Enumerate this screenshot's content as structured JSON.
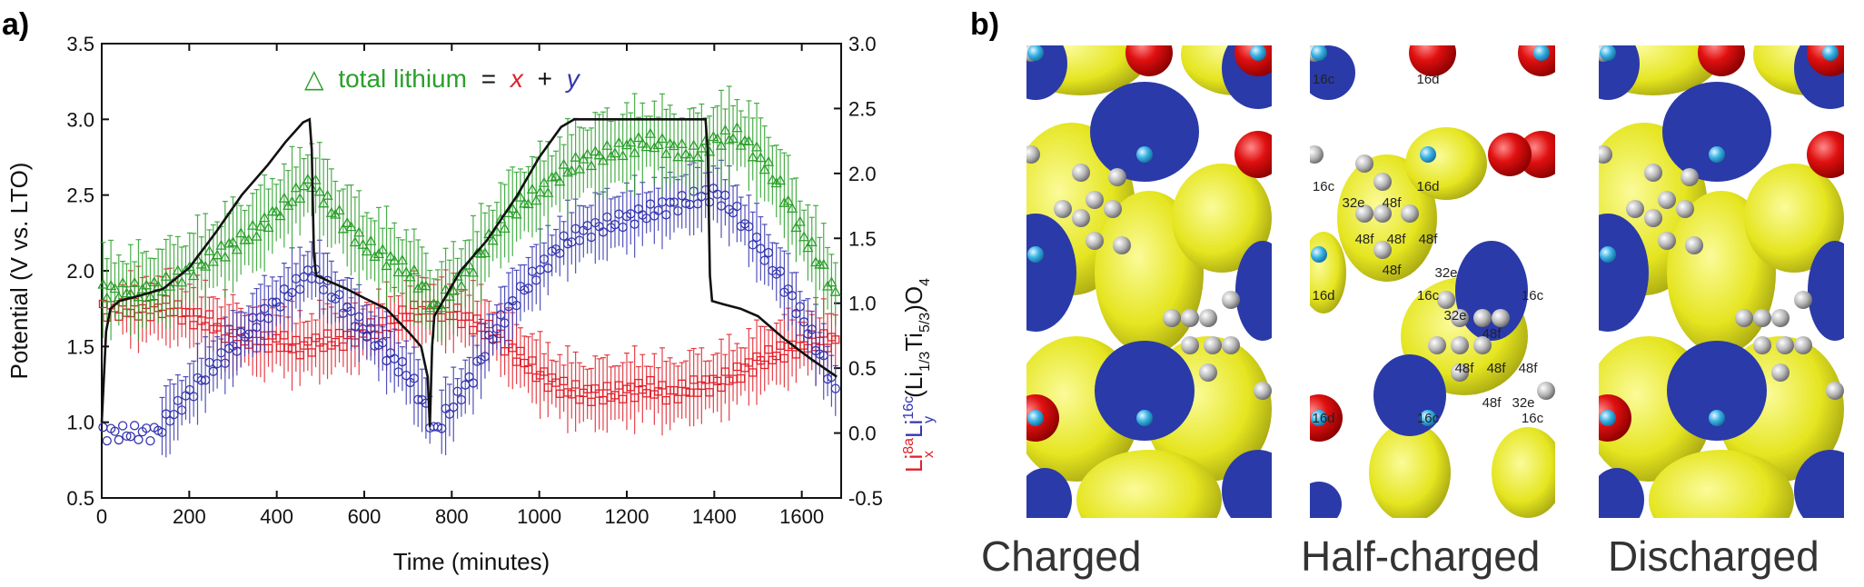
{
  "figure": {
    "panel_a_label": "a)",
    "panel_b_label": "b)"
  },
  "colors": {
    "potential": "#111111",
    "x_red": "#e0202a",
    "y_blue": "#3535b0",
    "total_green": "#2aa02a",
    "yellow": "#e8e820",
    "blue_density": "#2a3aa8",
    "oxygen": "#dd1111",
    "titanium": "#3bb3e6",
    "lithium": "#b5b5b5"
  },
  "chart_data": {
    "type": "line",
    "legend": {
      "symbol": "△",
      "text": "total lithium",
      "equals": "=",
      "x_symbol": "x",
      "plus": "+",
      "y_symbol": "y",
      "placement": "top-left"
    },
    "xlabel": "Time (minutes)",
    "ylabel_left": "Potential (V vs. LTO)",
    "ylabel_right": {
      "li": "Li",
      "sup_8a": "8a",
      "sub_x": "x",
      "sup_16c": "16c",
      "sub_y": "y",
      "formula": "(Li",
      "sub_13": "1/3",
      "ti": "Ti",
      "sub_53": "5/3",
      "o": ")O",
      "sub_4": "4"
    },
    "xlim": [
      0,
      1690
    ],
    "ylim_left": [
      0.5,
      3.5
    ],
    "ylim_right": [
      -0.5,
      3.0
    ],
    "xticks": [
      "0",
      "200",
      "400",
      "600",
      "800",
      "1000",
      "1200",
      "1400",
      "1600"
    ],
    "yticks_left": [
      "0.5",
      "1.0",
      "1.5",
      "2.0",
      "2.5",
      "3.0",
      "3.5"
    ],
    "yticks_right": [
      "-0.5",
      "0.0",
      "0.5",
      "1.0",
      "1.5",
      "2.0",
      "2.5",
      "3.0"
    ],
    "series": [
      {
        "axis": "left",
        "style": "line",
        "x": [
          0,
          5,
          10,
          20,
          40,
          80,
          140,
          200,
          260,
          320,
          380,
          420,
          460,
          475,
          480,
          485,
          490,
          520,
          560,
          600,
          650,
          700,
          730,
          745,
          750,
          755,
          760,
          780,
          820,
          880,
          950,
          1000,
          1050,
          1080,
          1100,
          1200,
          1300,
          1380,
          1385,
          1390,
          1395,
          1420,
          1460,
          1500,
          1560,
          1620,
          1680
        ],
        "values": [
          1.0,
          1.3,
          1.6,
          1.75,
          1.8,
          1.83,
          1.88,
          2.02,
          2.25,
          2.5,
          2.7,
          2.85,
          2.98,
          3.0,
          2.8,
          2.1,
          1.97,
          1.93,
          1.88,
          1.82,
          1.75,
          1.6,
          1.5,
          1.3,
          0.97,
          1.5,
          1.7,
          1.8,
          2.0,
          2.2,
          2.5,
          2.75,
          2.95,
          3.0,
          3.0,
          3.0,
          3.0,
          3.0,
          2.8,
          1.97,
          1.8,
          1.78,
          1.75,
          1.7,
          1.55,
          1.42,
          1.3
        ]
      },
      {
        "name": "x",
        "axis": "right",
        "style": "squares",
        "x": [
          0,
          50,
          100,
          150,
          200,
          250,
          300,
          350,
          400,
          450,
          500,
          550,
          600,
          650,
          700,
          750,
          800,
          850,
          900,
          950,
          1000,
          1050,
          1100,
          1150,
          1200,
          1250,
          1300,
          1350,
          1400,
          1450,
          1500,
          1550,
          1600,
          1650,
          1680
        ],
        "values": [
          0.95,
          0.95,
          0.95,
          0.97,
          0.9,
          0.85,
          0.75,
          0.7,
          0.72,
          0.65,
          0.7,
          0.72,
          0.78,
          0.82,
          0.92,
          0.95,
          0.93,
          0.85,
          0.75,
          0.6,
          0.45,
          0.35,
          0.3,
          0.3,
          0.32,
          0.35,
          0.3,
          0.35,
          0.38,
          0.45,
          0.55,
          0.62,
          0.68,
          0.72,
          0.7
        ]
      },
      {
        "name": "y",
        "axis": "right",
        "style": "circles",
        "x": [
          0,
          50,
          100,
          125,
          150,
          200,
          250,
          300,
          350,
          400,
          450,
          480,
          520,
          560,
          600,
          650,
          700,
          740,
          760,
          800,
          850,
          900,
          950,
          1000,
          1050,
          1100,
          1150,
          1200,
          1250,
          1300,
          1350,
          1400,
          1450,
          1500,
          1550,
          1600,
          1650,
          1680
        ],
        "values": [
          0.0,
          0.0,
          0.0,
          0.0,
          0.1,
          0.3,
          0.5,
          0.65,
          0.85,
          1.0,
          1.15,
          1.25,
          1.1,
          0.95,
          0.8,
          0.62,
          0.45,
          0.2,
          0.0,
          0.2,
          0.45,
          0.8,
          1.05,
          1.25,
          1.45,
          1.55,
          1.6,
          1.65,
          1.7,
          1.75,
          1.8,
          1.85,
          1.7,
          1.45,
          1.2,
          0.9,
          0.55,
          0.3
        ]
      },
      {
        "name": "total lithium",
        "axis": "right",
        "style": "triangles",
        "x": [
          0,
          50,
          100,
          150,
          200,
          250,
          300,
          350,
          400,
          450,
          480,
          520,
          560,
          600,
          650,
          700,
          740,
          760,
          800,
          850,
          900,
          950,
          1000,
          1050,
          1100,
          1150,
          1200,
          1250,
          1300,
          1350,
          1400,
          1450,
          1500,
          1550,
          1600,
          1650,
          1680
        ],
        "values": [
          1.1,
          1.1,
          1.1,
          1.15,
          1.25,
          1.35,
          1.45,
          1.55,
          1.7,
          1.85,
          1.95,
          1.75,
          1.6,
          1.45,
          1.35,
          1.25,
          1.1,
          0.95,
          1.1,
          1.3,
          1.55,
          1.75,
          1.85,
          2.0,
          2.1,
          2.15,
          2.2,
          2.25,
          2.2,
          2.15,
          2.25,
          2.3,
          2.15,
          1.9,
          1.55,
          1.25,
          1.05
        ]
      }
    ]
  },
  "panel_b": {
    "captions": [
      "Charged",
      "Half-charged",
      "Discharged"
    ],
    "site_labels": {
      "s16c": "16c",
      "s16d": "16d",
      "s32e": "32e",
      "s48f": "48f"
    }
  }
}
